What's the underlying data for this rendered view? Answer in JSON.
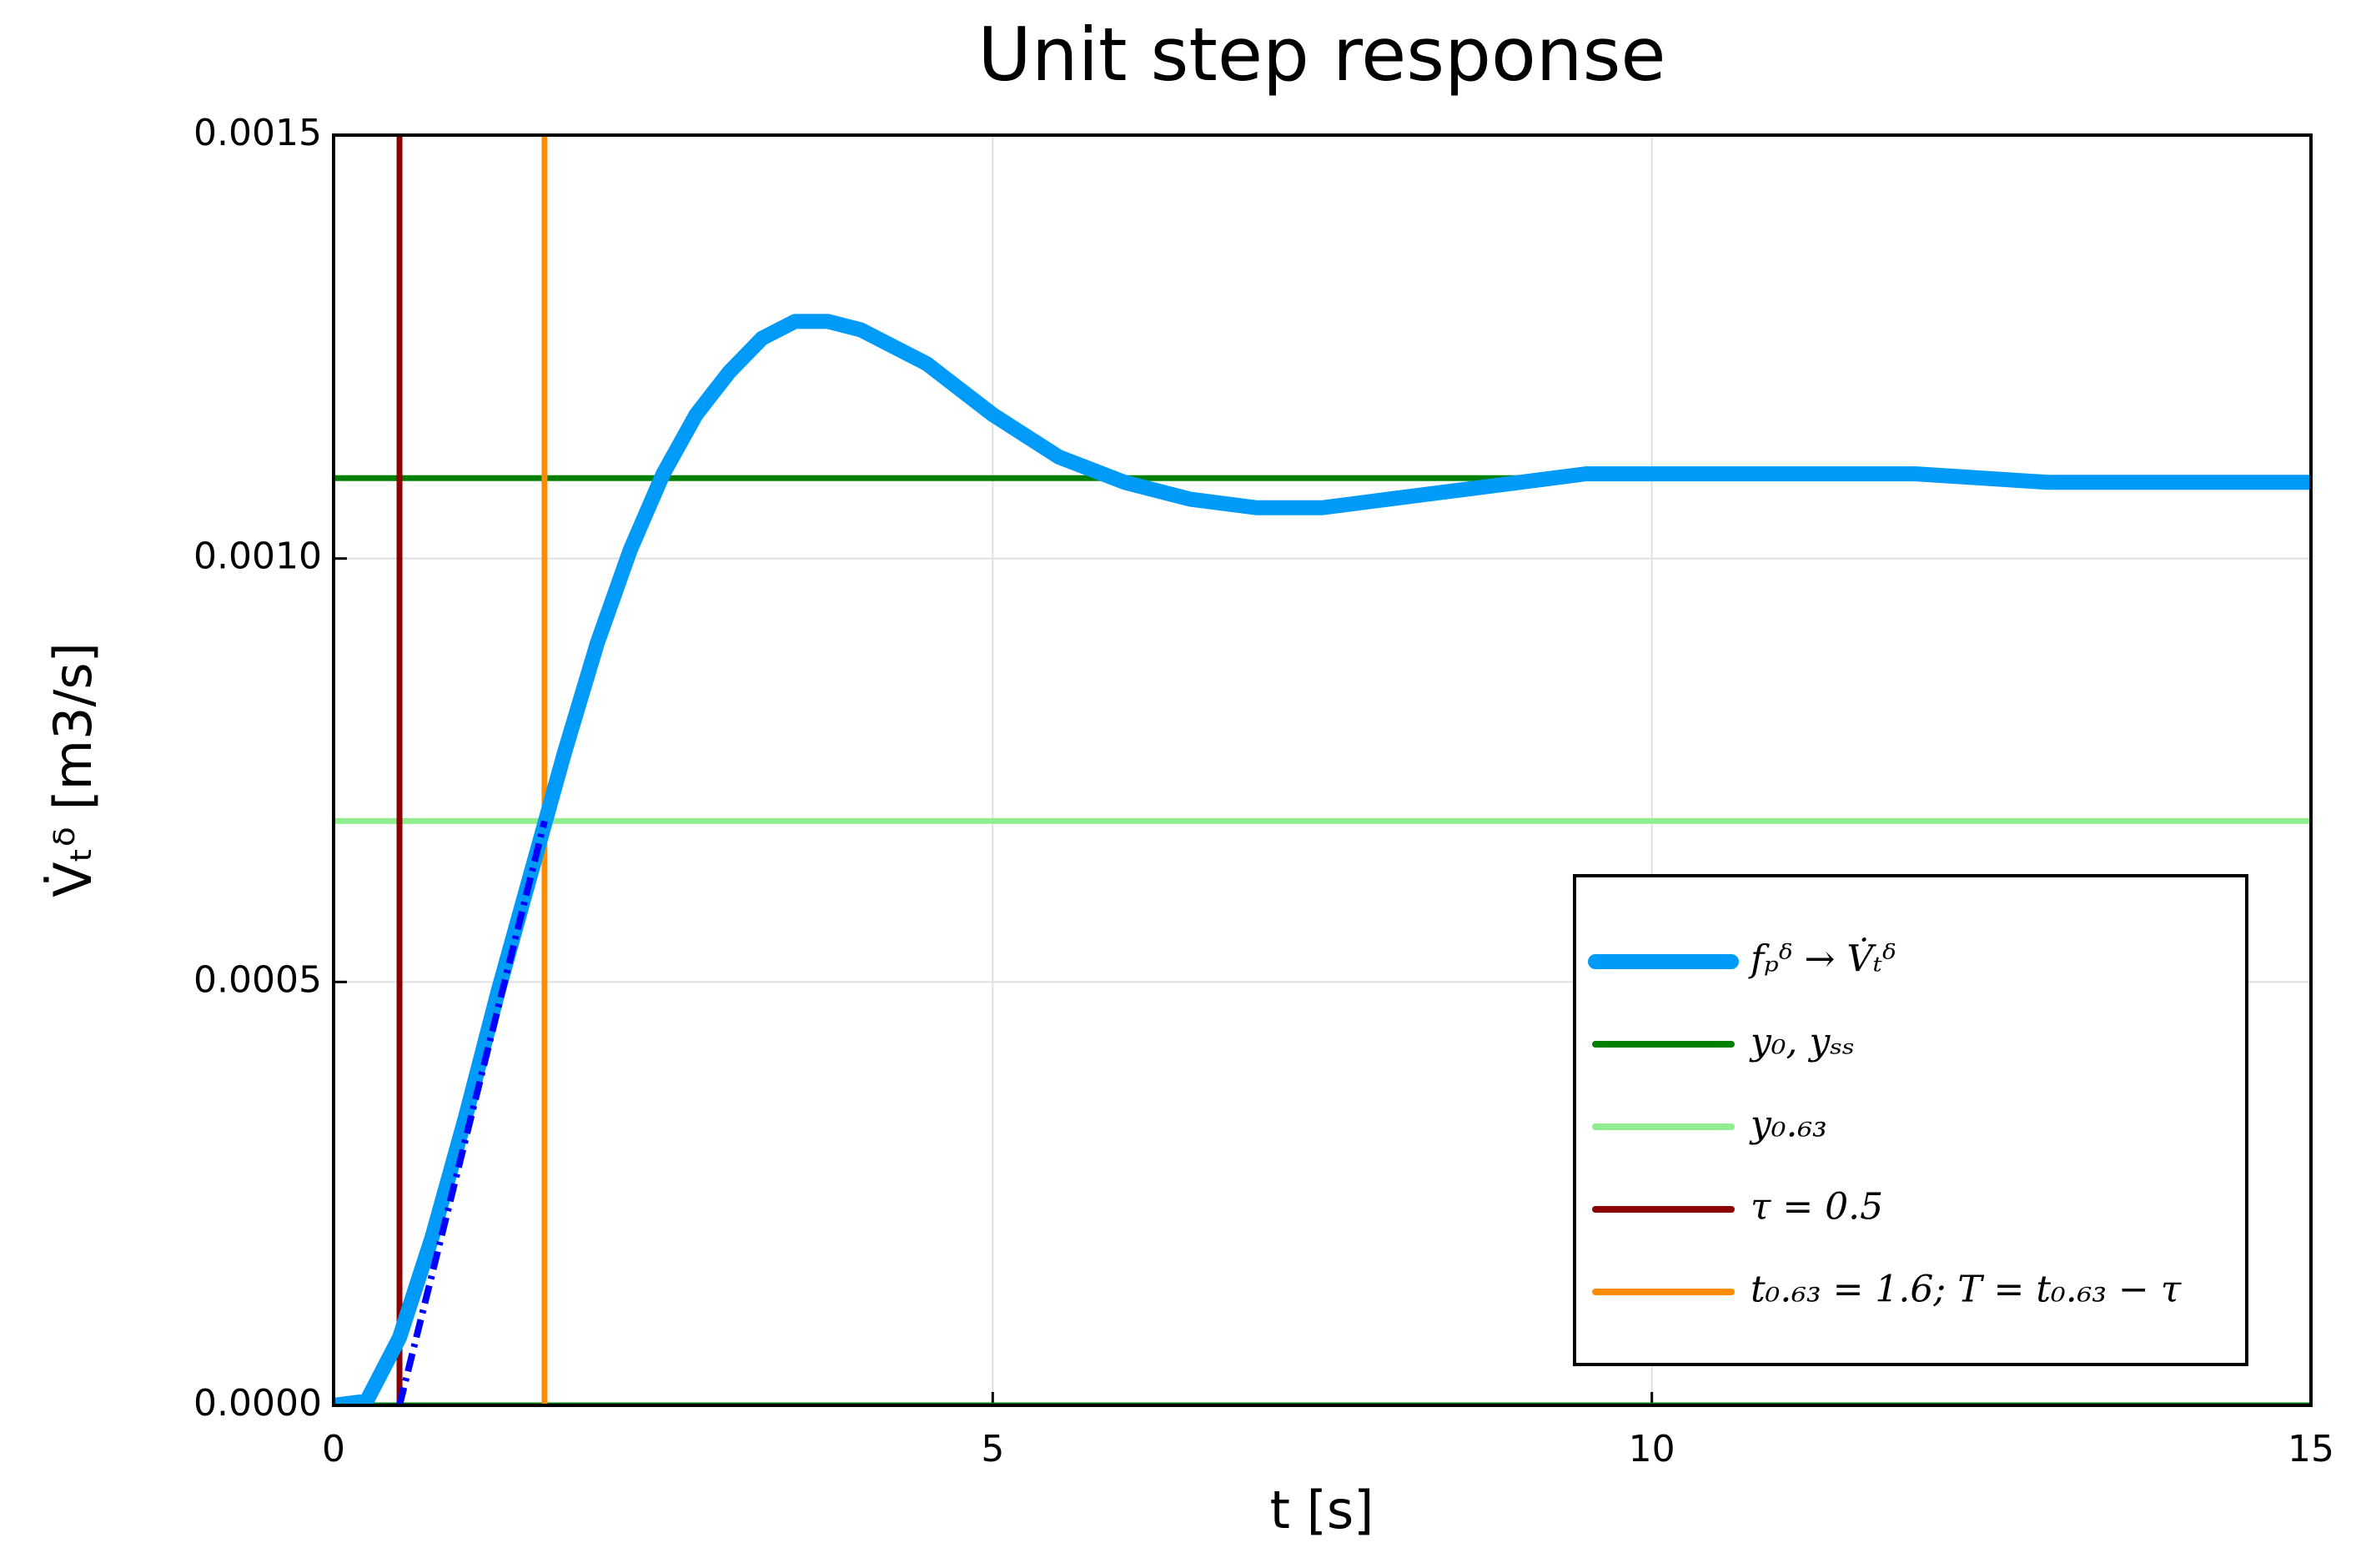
{
  "chart_data": {
    "type": "line",
    "title": "Unit step response",
    "x_label": "t [s]",
    "y_label": "V̇ₜᵟ [m3/s]",
    "xlim": [
      0,
      15
    ],
    "xticks": [
      0,
      5,
      10,
      15
    ],
    "ylim": [
      0,
      0.0015
    ],
    "yticks": [
      {
        "value": 0,
        "label": "0.0000"
      },
      {
        "value": 0.0005,
        "label": "0.0005"
      },
      {
        "value": 0.001,
        "label": "0.0010"
      },
      0.0015
    ],
    "grid": true,
    "legend": "lower right",
    "series": [
      {
        "name": "fₚᵟ → V̇ₜᵟ",
        "color": "#009af9",
        "x": [
          0,
          0.25,
          0.5,
          0.75,
          1.0,
          1.25,
          1.5,
          1.75,
          2.0,
          2.25,
          2.5,
          2.75,
          3.0,
          3.25,
          3.5,
          3.75,
          4.0,
          4.5,
          5.0,
          5.5,
          6.0,
          6.5,
          7.0,
          7.5,
          8.0,
          8.5,
          9.0,
          9.5,
          10.0,
          10.5,
          11.0,
          12.0,
          13.0,
          14.0,
          15.0
        ],
        "values": [
          0,
          5e-06,
          8e-05,
          0.0002,
          0.00034,
          0.00049,
          0.00063,
          0.00077,
          0.0009,
          0.00101,
          0.0011,
          0.00117,
          0.00122,
          0.00126,
          0.00128,
          0.00128,
          0.00127,
          0.00123,
          0.00117,
          0.00112,
          0.00109,
          0.00107,
          0.00106,
          0.00106,
          0.00107,
          0.00108,
          0.00109,
          0.0011,
          0.0011,
          0.0011,
          0.0011,
          0.0011,
          0.00109,
          0.00109,
          0.00109
        ]
      },
      {
        "name": "y₀, yₛₛ",
        "color": "#008000",
        "hlines": [
          0,
          0.001095
        ]
      },
      {
        "name": "y₀.₆₃",
        "color": "#90ee90",
        "hlines": [
          0.00069
        ]
      },
      {
        "name": "τ = 0.5",
        "color": "#8b0000",
        "vlines": [
          0.5
        ]
      },
      {
        "name": "t₀.₆₃ = 1.6; T = t₀.₆₃ − τ",
        "color": "#ff8c00",
        "vlines": [
          1.6
        ]
      }
    ],
    "tangent": {
      "color": "#0000ff",
      "x": [
        0.5,
        1.6
      ],
      "values": [
        0,
        0.00069
      ]
    }
  }
}
